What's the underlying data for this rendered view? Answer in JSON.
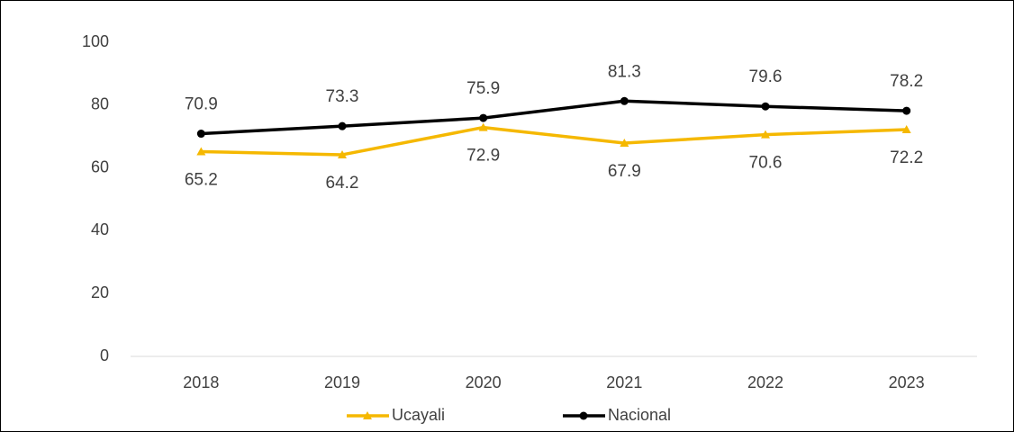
{
  "chart_data": {
    "type": "line",
    "categories": [
      "2018",
      "2019",
      "2020",
      "2021",
      "2022",
      "2023"
    ],
    "series": [
      {
        "name": "Ucayali",
        "color": "#f5b800",
        "marker": "triangle",
        "label_position": "below",
        "values": [
          65.2,
          64.2,
          72.9,
          67.9,
          70.6,
          72.2
        ]
      },
      {
        "name": "Nacional",
        "color": "#000000",
        "marker": "circle",
        "label_position": "above",
        "values": [
          70.9,
          73.3,
          75.9,
          81.3,
          79.6,
          78.2
        ]
      }
    ],
    "ylim": [
      0,
      100
    ],
    "yticks": [
      0,
      20,
      40,
      60,
      80,
      100
    ],
    "grid": false,
    "legend": "bottom"
  }
}
